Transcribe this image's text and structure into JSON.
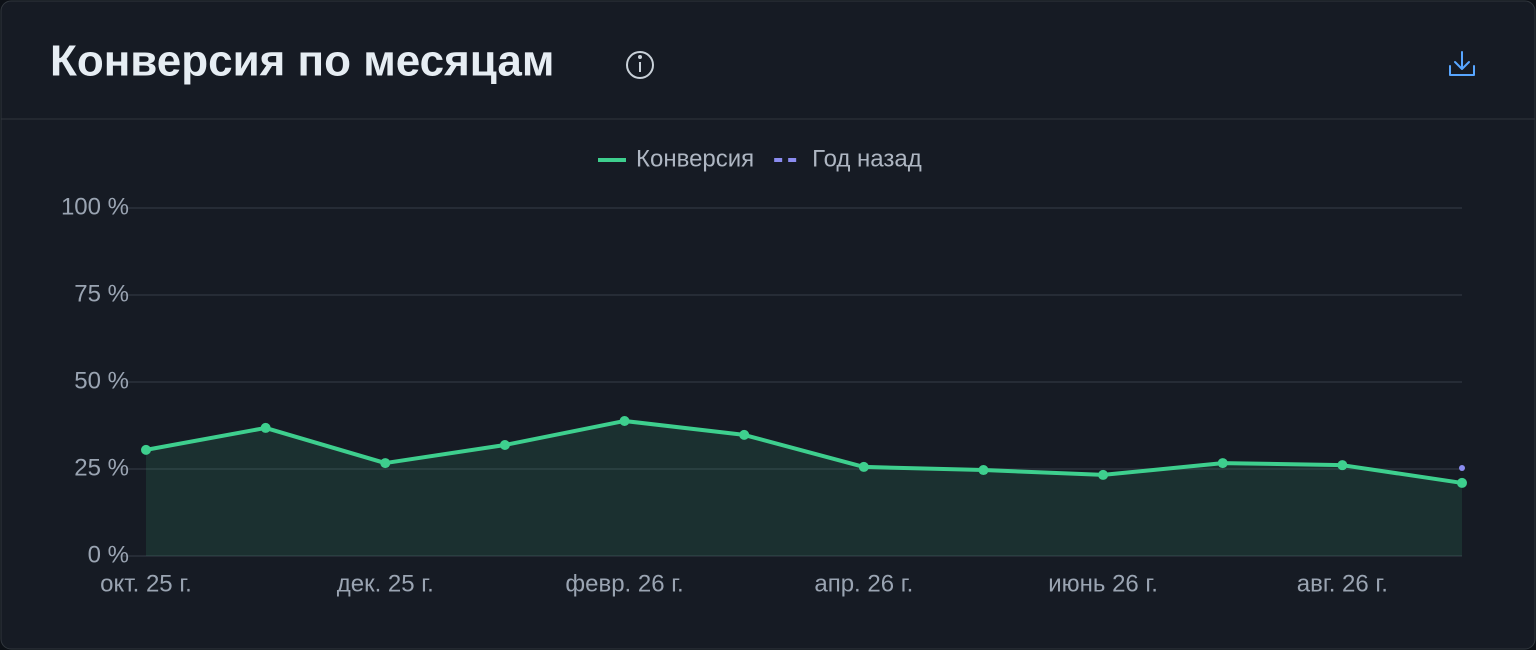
{
  "chart_data": {
    "type": "line",
    "title": "Конверсия по месяцам",
    "categories": [
      "окт. 25 г.",
      null,
      "дек. 25 г.",
      null,
      "февр. 26 г.",
      null,
      "апр. 26 г.",
      null,
      "июнь 26 г.",
      null,
      "авг. 26 г.",
      null
    ],
    "series": [
      {
        "name": "Конверсия",
        "color": "#3ecf8e",
        "values": [
          30.5,
          36.8,
          26.7,
          31.9,
          38.8,
          34.8,
          25.6,
          24.7,
          23.3,
          26.7,
          26.1,
          21.0
        ]
      },
      {
        "name": "Год назад",
        "color": "#8b8cf0",
        "values": [
          null,
          null,
          null,
          null,
          null,
          null,
          null,
          null,
          null,
          null,
          null,
          25.3
        ]
      }
    ],
    "ylim": [
      0,
      100
    ],
    "yticks": [
      {
        "value": 0,
        "label": "0 %"
      },
      {
        "value": 25,
        "label": "25 %"
      },
      {
        "value": 50,
        "label": "50 %"
      },
      {
        "value": 75,
        "label": "75 %"
      },
      {
        "value": 100,
        "label": "100 %"
      }
    ],
    "grid": true,
    "legend": "top"
  }
}
